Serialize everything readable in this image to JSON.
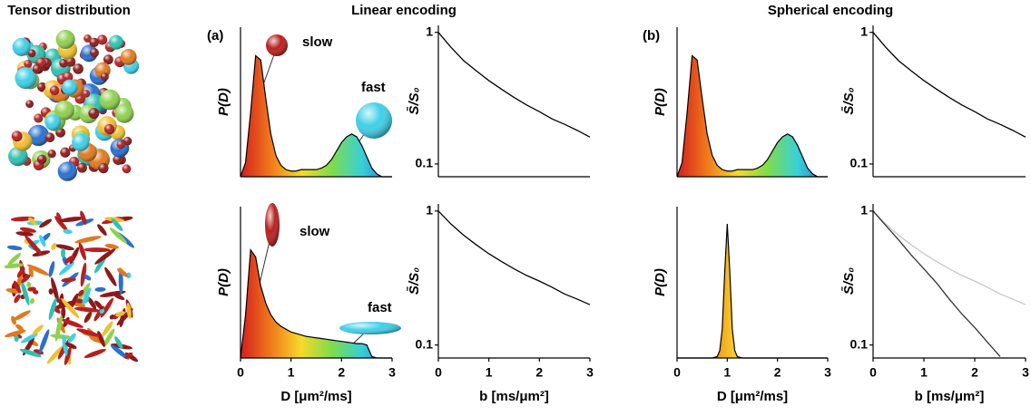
{
  "figure": {
    "column_titles": [
      "Tensor distribution",
      "Linear encoding",
      "Spherical encoding"
    ],
    "panel_labels": [
      "(a)",
      "(b)"
    ]
  },
  "chart_data": [
    {
      "type": "area",
      "ylabel": "P(D)",
      "xlim": [
        0,
        3
      ],
      "ylim": [
        0,
        1.05
      ],
      "annotations": [
        "slow",
        "fast"
      ],
      "colormap": [
        "#d41e1e",
        "#f07a1a",
        "#f7d92a",
        "#7fdc4a",
        "#38d0d8",
        "#2a6fd8"
      ],
      "x": [
        0,
        0.1,
        0.2,
        0.3,
        0.4,
        0.5,
        0.6,
        0.7,
        0.8,
        0.9,
        1,
        1.1,
        1.2,
        1.3,
        1.4,
        1.5,
        1.6,
        1.7,
        1.8,
        1.9,
        2,
        2.1,
        2.2,
        2.3,
        2.4,
        2.5,
        2.6,
        2.7,
        2.8,
        2.9,
        3
      ],
      "values": [
        0,
        0.1,
        0.45,
        0.85,
        0.82,
        0.55,
        0.3,
        0.15,
        0.08,
        0.05,
        0.04,
        0.04,
        0.05,
        0.05,
        0.05,
        0.05,
        0.06,
        0.08,
        0.12,
        0.18,
        0.24,
        0.28,
        0.3,
        0.28,
        0.22,
        0.14,
        0.06,
        0.02,
        0,
        0,
        0
      ]
    },
    {
      "type": "line",
      "ylabel": "S̄/S₀",
      "log_y": true,
      "xlim": [
        0,
        3
      ],
      "ylim": [
        0.08,
        1.13
      ],
      "yticks": [
        1,
        0.1
      ],
      "x": [
        0,
        0.25,
        0.5,
        0.75,
        1,
        1.25,
        1.5,
        1.75,
        2,
        2.25,
        2.5,
        2.75,
        3
      ],
      "series": [
        {
          "color": "#000000",
          "values": [
            1,
            0.77,
            0.61,
            0.51,
            0.43,
            0.37,
            0.32,
            0.28,
            0.25,
            0.22,
            0.2,
            0.18,
            0.16
          ]
        }
      ]
    },
    {
      "type": "area",
      "ylabel": "P(D)",
      "xlim": [
        0,
        3
      ],
      "ylim": [
        0,
        1.05
      ],
      "colormap": [
        "#d41e1e",
        "#f07a1a",
        "#f7d92a",
        "#7fdc4a",
        "#38d0d8",
        "#2a6fd8"
      ],
      "x": [
        0,
        0.1,
        0.2,
        0.3,
        0.4,
        0.5,
        0.6,
        0.7,
        0.8,
        0.9,
        1,
        1.1,
        1.2,
        1.3,
        1.4,
        1.5,
        1.6,
        1.7,
        1.8,
        1.9,
        2,
        2.1,
        2.2,
        2.3,
        2.4,
        2.5,
        2.6,
        2.7,
        2.8,
        2.9,
        3
      ],
      "values": [
        0,
        0.1,
        0.45,
        0.85,
        0.82,
        0.55,
        0.3,
        0.15,
        0.08,
        0.05,
        0.04,
        0.04,
        0.05,
        0.05,
        0.05,
        0.05,
        0.06,
        0.08,
        0.12,
        0.18,
        0.24,
        0.28,
        0.3,
        0.28,
        0.22,
        0.14,
        0.06,
        0.02,
        0,
        0,
        0
      ]
    },
    {
      "type": "line",
      "ylabel": "S̄/S₀",
      "log_y": true,
      "xlim": [
        0,
        3
      ],
      "ylim": [
        0.08,
        1.13
      ],
      "yticks": [
        1,
        0.1
      ],
      "x": [
        0,
        0.25,
        0.5,
        0.75,
        1,
        1.25,
        1.5,
        1.75,
        2,
        2.25,
        2.5,
        2.75,
        3
      ],
      "series": [
        {
          "color": "#000000",
          "values": [
            1,
            0.77,
            0.61,
            0.51,
            0.43,
            0.37,
            0.32,
            0.28,
            0.25,
            0.22,
            0.2,
            0.18,
            0.16
          ]
        }
      ]
    },
    {
      "type": "area",
      "ylabel": "P(D)",
      "xlabel": "D [μm²/ms]",
      "xlim": [
        0,
        3
      ],
      "ylim": [
        0,
        1.05
      ],
      "xticks": [
        0,
        1,
        2,
        3
      ],
      "annotations": [
        "slow",
        "fast"
      ],
      "colormap": [
        "#d41e1e",
        "#f07a1a",
        "#f7d92a",
        "#7fdc4a",
        "#38d0d8",
        "#2a6fd8"
      ],
      "x": [
        0,
        0.1,
        0.2,
        0.3,
        0.4,
        0.5,
        0.6,
        0.7,
        0.8,
        0.9,
        1,
        1.1,
        1.2,
        1.3,
        1.4,
        1.5,
        1.6,
        1.7,
        1.8,
        1.9,
        2,
        2.1,
        2.2,
        2.3,
        2.4,
        2.5,
        2.6,
        2.7,
        2.8,
        2.9,
        3
      ],
      "values": [
        0,
        0.3,
        0.75,
        0.7,
        0.5,
        0.38,
        0.3,
        0.25,
        0.22,
        0.2,
        0.18,
        0.17,
        0.16,
        0.15,
        0.145,
        0.14,
        0.135,
        0.13,
        0.125,
        0.12,
        0.115,
        0.11,
        0.105,
        0.1,
        0.1,
        0.09,
        0.01,
        0,
        0,
        0,
        0
      ]
    },
    {
      "type": "line",
      "ylabel": "S̄/S₀",
      "xlabel": "b [ms/μm²]",
      "log_y": true,
      "xlim": [
        0,
        3
      ],
      "ylim": [
        0.08,
        1.13
      ],
      "yticks": [
        1,
        0.1
      ],
      "xticks": [
        0,
        1,
        2,
        3
      ],
      "x": [
        0,
        0.25,
        0.5,
        0.75,
        1,
        1.25,
        1.5,
        1.75,
        2,
        2.25,
        2.5,
        2.75,
        3
      ],
      "series": [
        {
          "color": "#000000",
          "values": [
            1,
            0.8,
            0.66,
            0.56,
            0.48,
            0.42,
            0.37,
            0.33,
            0.3,
            0.27,
            0.24,
            0.22,
            0.2
          ]
        }
      ]
    },
    {
      "type": "area",
      "ylabel": "P(D)",
      "xlabel": "D [μm²/ms]",
      "xlim": [
        0,
        3
      ],
      "ylim": [
        0,
        1.05
      ],
      "xticks": [
        0,
        1,
        2,
        3
      ],
      "colormap": [
        "#d41e1e",
        "#f07a1a",
        "#f7d92a",
        "#7fdc4a",
        "#38d0d8",
        "#2a6fd8"
      ],
      "x": [
        0,
        0.7,
        0.8,
        0.85,
        0.9,
        0.95,
        1,
        1.05,
        1.1,
        1.15,
        1.2,
        1.3,
        3
      ],
      "values": [
        0,
        0,
        0.01,
        0.05,
        0.2,
        0.6,
        0.93,
        0.6,
        0.2,
        0.05,
        0.01,
        0,
        0
      ]
    },
    {
      "type": "line",
      "ylabel": "S̄/S₀",
      "xlabel": "b [ms/μm²]",
      "log_y": true,
      "xlim": [
        0,
        3
      ],
      "ylim": [
        0.08,
        1.13
      ],
      "yticks": [
        1,
        0.1
      ],
      "xticks": [
        0,
        1,
        2,
        3
      ],
      "x": [
        0,
        0.25,
        0.5,
        0.75,
        1,
        1.25,
        1.5,
        1.75,
        2,
        2.25,
        2.5,
        2.75,
        3
      ],
      "series": [
        {
          "color": "#c8c8c8",
          "values": [
            1,
            0.8,
            0.66,
            0.56,
            0.48,
            0.42,
            0.37,
            0.33,
            0.3,
            0.27,
            0.24,
            0.22,
            0.2
          ]
        },
        {
          "color": "#333333",
          "values": [
            1,
            0.78,
            0.61,
            0.47,
            0.37,
            0.29,
            0.22,
            0.17,
            0.135,
            0.105,
            0.082,
            null,
            null
          ]
        }
      ]
    }
  ]
}
